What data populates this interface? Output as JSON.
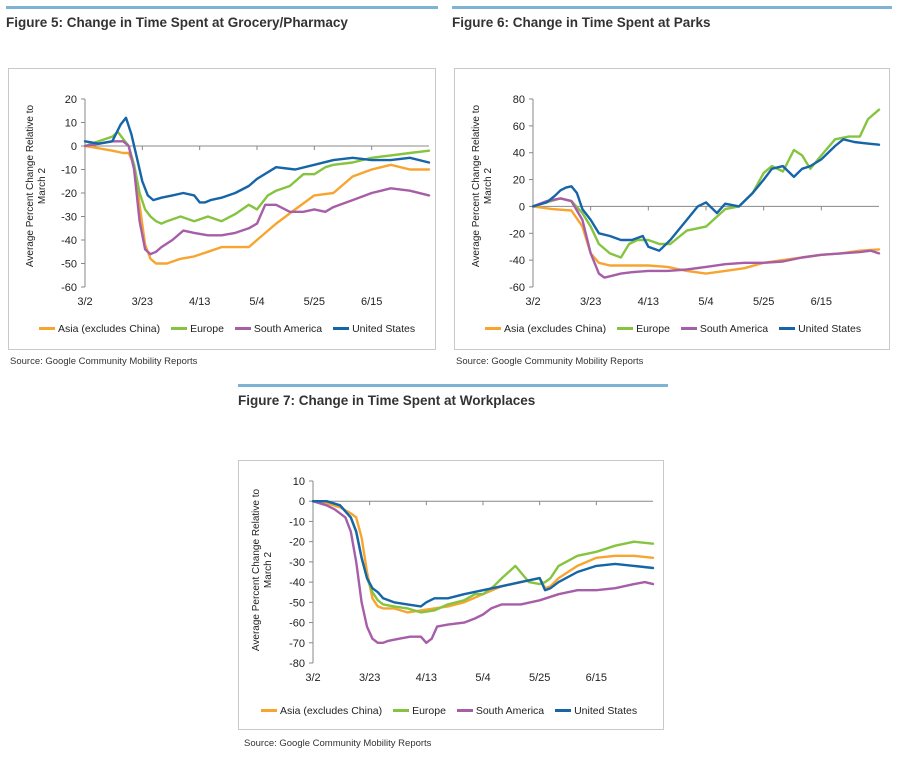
{
  "series_colors": {
    "Asia (excludes China)": "#f7a530",
    "Europe": "#86c440",
    "South America": "#a65ea8",
    "United States": "#1565a8"
  },
  "chart_data": [
    {
      "type": "line",
      "title": "Figure 5: Change in Time Spent at Grocery/Pharmacy",
      "source": "Source: Google Community Mobility Reports",
      "ylabel_line1": "Average Percent Change Relative to",
      "ylabel_line2": "March 2",
      "ylim": [
        -60,
        20
      ],
      "yticks": [
        20,
        10,
        0,
        -10,
        -20,
        -30,
        -40,
        -50,
        -60
      ],
      "yticklabels": [
        "20",
        "10",
        "0",
        "-10",
        "-20",
        "-30",
        "-40",
        "-50",
        "-60"
      ],
      "xlim": [
        0,
        126
      ],
      "xticks": [
        0,
        21,
        42,
        63,
        84,
        105
      ],
      "xticklabels": [
        "3/2",
        "3/23",
        "4/13",
        "5/4",
        "5/25",
        "6/15"
      ],
      "legend": [
        "Asia (excludes China)",
        "Europe",
        "South America",
        "United States"
      ],
      "series": [
        {
          "name": "Asia (excludes China)",
          "x": [
            0,
            5,
            10,
            14,
            16,
            18,
            20,
            22,
            24,
            26,
            28,
            30,
            35,
            40,
            45,
            50,
            55,
            60,
            63,
            70,
            77,
            84,
            91,
            98,
            105,
            112,
            119,
            126
          ],
          "values": [
            0,
            -1,
            -2,
            -3,
            -3,
            -8,
            -25,
            -42,
            -48,
            -50,
            -50,
            -50,
            -48,
            -47,
            -45,
            -43,
            -43,
            -43,
            -40,
            -33,
            -27,
            -21,
            -20,
            -13,
            -10,
            -8,
            -10,
            -10
          ]
        },
        {
          "name": "Europe",
          "x": [
            0,
            5,
            10,
            12,
            14,
            16,
            18,
            20,
            22,
            24,
            26,
            28,
            30,
            35,
            40,
            45,
            50,
            55,
            60,
            63,
            67,
            70,
            75,
            80,
            84,
            88,
            91,
            98,
            105,
            112,
            119,
            126
          ],
          "values": [
            0,
            2,
            4,
            6,
            3,
            0,
            -8,
            -20,
            -27,
            -30,
            -32,
            -33,
            -32,
            -30,
            -32,
            -30,
            -32,
            -29,
            -25,
            -27,
            -21,
            -19,
            -17,
            -12,
            -12,
            -9,
            -8,
            -7,
            -5,
            -4,
            -3,
            -2
          ]
        },
        {
          "name": "South America",
          "x": [
            0,
            5,
            10,
            14,
            16,
            18,
            20,
            22,
            24,
            26,
            28,
            32,
            36,
            40,
            45,
            50,
            55,
            60,
            63,
            66,
            70,
            75,
            80,
            84,
            88,
            91,
            98,
            105,
            112,
            119,
            126
          ],
          "values": [
            0,
            1,
            2,
            2,
            0,
            -10,
            -32,
            -44,
            -46,
            -45,
            -43,
            -40,
            -36,
            -37,
            -38,
            -38,
            -37,
            -35,
            -33,
            -25,
            -25,
            -28,
            -28,
            -27,
            -28,
            -26,
            -23,
            -20,
            -18,
            -19,
            -21
          ]
        },
        {
          "name": "United States",
          "x": [
            0,
            5,
            10,
            13,
            15,
            17,
            19,
            21,
            23,
            25,
            28,
            32,
            36,
            40,
            42,
            44,
            46,
            50,
            55,
            60,
            63,
            70,
            77,
            84,
            91,
            98,
            105,
            112,
            119,
            126
          ],
          "values": [
            2,
            1,
            2,
            9,
            12,
            5,
            -5,
            -15,
            -21,
            -23,
            -22,
            -21,
            -20,
            -21,
            -24,
            -24,
            -23,
            -22,
            -20,
            -17,
            -14,
            -9,
            -10,
            -8,
            -6,
            -5,
            -6,
            -6,
            -5,
            -7
          ]
        }
      ]
    },
    {
      "type": "line",
      "title": "Figure 6: Change in Time Spent at Parks",
      "source": "Source: Google Community Mobility Reports",
      "ylabel_line1": "Average Percent Change Relative to",
      "ylabel_line2": "March 2",
      "ylim": [
        -60,
        80
      ],
      "yticks": [
        80,
        60,
        40,
        20,
        0,
        -20,
        -40,
        -60
      ],
      "yticklabels": [
        "80",
        "60",
        "40",
        "20",
        "0",
        "-20",
        "-40",
        "-60"
      ],
      "xlim": [
        0,
        126
      ],
      "xticks": [
        0,
        21,
        42,
        63,
        84,
        105
      ],
      "xticklabels": [
        "3/2",
        "3/23",
        "4/13",
        "5/4",
        "5/25",
        "6/15"
      ],
      "legend": [
        "Asia (excludes China)",
        "Europe",
        "South America",
        "United States"
      ],
      "series": [
        {
          "name": "Asia (excludes China)",
          "x": [
            0,
            7,
            14,
            18,
            21,
            24,
            28,
            35,
            42,
            49,
            56,
            63,
            70,
            77,
            84,
            91,
            98,
            105,
            112,
            119,
            126
          ],
          "values": [
            0,
            -2,
            -3,
            -15,
            -35,
            -42,
            -44,
            -44,
            -44,
            -45,
            -48,
            -50,
            -48,
            -46,
            -42,
            -40,
            -38,
            -36,
            -35,
            -33,
            -32
          ]
        },
        {
          "name": "Europe",
          "x": [
            0,
            5,
            10,
            14,
            18,
            21,
            24,
            28,
            32,
            35,
            38,
            42,
            46,
            50,
            56,
            63,
            70,
            75,
            80,
            84,
            87,
            91,
            95,
            98,
            101,
            105,
            110,
            115,
            119,
            122,
            126
          ],
          "values": [
            0,
            3,
            6,
            4,
            -5,
            -15,
            -28,
            -35,
            -38,
            -28,
            -25,
            -25,
            -28,
            -28,
            -18,
            -15,
            -2,
            0,
            10,
            25,
            30,
            26,
            42,
            38,
            28,
            38,
            50,
            52,
            52,
            65,
            72
          ]
        },
        {
          "name": "South America",
          "x": [
            0,
            5,
            10,
            14,
            18,
            21,
            24,
            26,
            28,
            32,
            36,
            42,
            49,
            56,
            63,
            70,
            77,
            84,
            91,
            98,
            105,
            112,
            119,
            123,
            126
          ],
          "values": [
            0,
            4,
            6,
            4,
            -10,
            -35,
            -50,
            -53,
            -52,
            -50,
            -49,
            -48,
            -48,
            -47,
            -45,
            -43,
            -42,
            -42,
            -41,
            -38,
            -36,
            -35,
            -34,
            -33,
            -35
          ]
        },
        {
          "name": "United States",
          "x": [
            0,
            5,
            8,
            10,
            12,
            14,
            16,
            18,
            21,
            24,
            28,
            32,
            36,
            40,
            42,
            46,
            50,
            56,
            60,
            63,
            67,
            70,
            75,
            80,
            84,
            87,
            91,
            95,
            98,
            101,
            105,
            110,
            113,
            117,
            121,
            126
          ],
          "values": [
            0,
            3,
            8,
            12,
            14,
            15,
            10,
            -2,
            -10,
            -20,
            -22,
            -25,
            -25,
            -22,
            -30,
            -33,
            -25,
            -10,
            0,
            3,
            -5,
            2,
            0,
            10,
            20,
            28,
            30,
            22,
            28,
            30,
            35,
            45,
            50,
            48,
            47,
            46
          ]
        }
      ]
    },
    {
      "type": "line",
      "title": "Figure 7: Change in Time Spent at Workplaces",
      "source": "Source: Google Community Mobility Reports",
      "ylabel_line1": "Average Percent Change Relative to",
      "ylabel_line2": "March 2",
      "ylim": [
        -80,
        10
      ],
      "yticks": [
        10,
        0,
        -10,
        -20,
        -30,
        -40,
        -50,
        -60,
        -70,
        -80
      ],
      "yticklabels": [
        "10",
        "0",
        "-10",
        "-20",
        "-30",
        "-40",
        "-50",
        "-60",
        "-70",
        "-80"
      ],
      "xlim": [
        0,
        126
      ],
      "xticks": [
        0,
        21,
        42,
        63,
        84,
        105
      ],
      "xticklabels": [
        "3/2",
        "3/23",
        "4/13",
        "5/4",
        "5/25",
        "6/15"
      ],
      "legend": [
        "Asia (excludes China)",
        "Europe",
        "South America",
        "United States"
      ],
      "series": [
        {
          "name": "Asia (excludes China)",
          "x": [
            0,
            5,
            10,
            14,
            16,
            18,
            20,
            22,
            24,
            26,
            30,
            35,
            40,
            45,
            50,
            56,
            63,
            70,
            77,
            84,
            86,
            88,
            91,
            98,
            105,
            112,
            119,
            126
          ],
          "values": [
            0,
            -1,
            -3,
            -6,
            -8,
            -18,
            -35,
            -48,
            -52,
            -53,
            -53,
            -55,
            -54,
            -53,
            -52,
            -50,
            -46,
            -42,
            -40,
            -38,
            -43,
            -42,
            -38,
            -32,
            -28,
            -27,
            -27,
            -28
          ]
        },
        {
          "name": "Europe",
          "x": [
            0,
            5,
            10,
            14,
            16,
            18,
            20,
            22,
            24,
            26,
            30,
            35,
            40,
            45,
            50,
            56,
            60,
            63,
            67,
            70,
            75,
            80,
            84,
            86,
            88,
            91,
            98,
            105,
            112,
            119,
            126
          ],
          "values": [
            0,
            0,
            -2,
            -8,
            -15,
            -28,
            -38,
            -45,
            -49,
            -51,
            -52,
            -53,
            -55,
            -54,
            -51,
            -49,
            -46,
            -46,
            -42,
            -38,
            -32,
            -40,
            -41,
            -40,
            -38,
            -32,
            -27,
            -25,
            -22,
            -20,
            -21
          ]
        },
        {
          "name": "South America",
          "x": [
            0,
            5,
            8,
            12,
            14,
            16,
            18,
            20,
            22,
            24,
            26,
            28,
            32,
            36,
            40,
            42,
            44,
            46,
            50,
            56,
            60,
            63,
            66,
            70,
            77,
            84,
            91,
            98,
            105,
            112,
            119,
            123,
            126
          ],
          "values": [
            0,
            -2,
            -4,
            -8,
            -15,
            -30,
            -50,
            -62,
            -68,
            -70,
            -70,
            -69,
            -68,
            -67,
            -67,
            -70,
            -68,
            -62,
            -61,
            -60,
            -58,
            -56,
            -53,
            -51,
            -51,
            -49,
            -46,
            -44,
            -44,
            -43,
            -41,
            -40,
            -41
          ]
        },
        {
          "name": "United States",
          "x": [
            0,
            5,
            10,
            14,
            16,
            18,
            20,
            22,
            24,
            26,
            30,
            35,
            40,
            42,
            45,
            50,
            56,
            63,
            70,
            77,
            84,
            86,
            88,
            91,
            98,
            105,
            112,
            119,
            126
          ],
          "values": [
            0,
            0,
            -2,
            -8,
            -15,
            -28,
            -38,
            -43,
            -45,
            -48,
            -50,
            -51,
            -52,
            -50,
            -48,
            -48,
            -46,
            -44,
            -42,
            -40,
            -38,
            -44,
            -43,
            -40,
            -35,
            -32,
            -31,
            -32,
            -33
          ]
        }
      ]
    }
  ]
}
